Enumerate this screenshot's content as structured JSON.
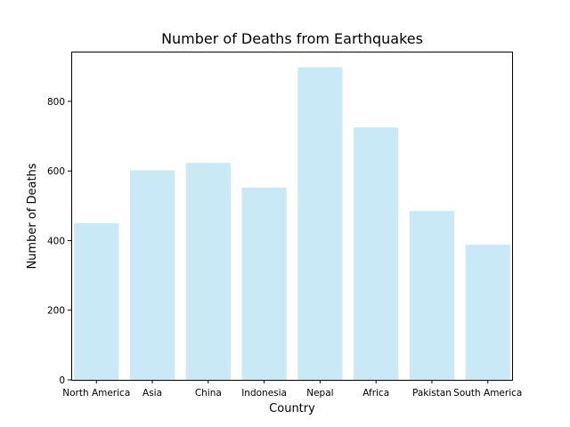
{
  "chart_data": {
    "type": "bar",
    "title": "Number of Deaths from Earthquakes",
    "xlabel": "Country",
    "ylabel": "Number of Deaths",
    "categories": [
      "North America",
      "Asia",
      "China",
      "Indonesia",
      "Nepal",
      "Africa",
      "Pakistan",
      "South America"
    ],
    "values": [
      450,
      602,
      623,
      552,
      898,
      725,
      485,
      388
    ],
    "ylim": [
      0,
      943
    ],
    "yticks": [
      0,
      200,
      400,
      600,
      800
    ],
    "grid": false,
    "bar_color": "#87ceeb",
    "bar_opacity": 0.45
  }
}
